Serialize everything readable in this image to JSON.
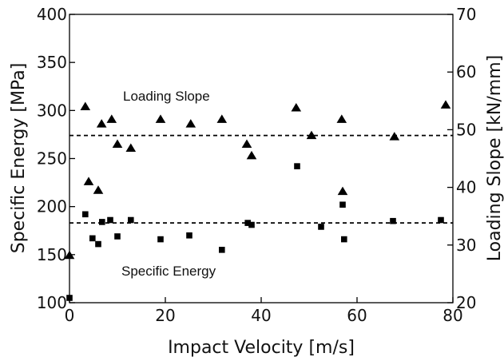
{
  "chart_data": {
    "type": "scatter",
    "xlabel": "Impact Velocity [m/s]",
    "ylabel": "Specific Energy [MPa]",
    "y2label": "Loading Slope [kN/mm]",
    "xlim": [
      0,
      80
    ],
    "ylim": [
      100,
      400
    ],
    "y2lim": [
      20,
      70
    ],
    "xticks": [
      "0",
      "20",
      "40",
      "60",
      "80"
    ],
    "yticks": [
      "100",
      "150",
      "200",
      "250",
      "300",
      "350",
      "400"
    ],
    "y2ticks": [
      "20",
      "30",
      "40",
      "50",
      "60",
      "70"
    ],
    "grid": false,
    "annotations": {
      "loading_slope": "Loading Slope",
      "specific_energy": "Specific Energy"
    },
    "series": [
      {
        "marker": "square",
        "axis": "left",
        "mean_line": 183,
        "x": [
          0,
          3.3,
          4.8,
          6.0,
          6.8,
          8.5,
          10.0,
          12.8,
          19.0,
          25.0,
          31.8,
          37.2,
          38.0,
          47.5,
          52.5,
          57.0,
          57.3,
          67.5,
          77.5
        ],
        "y": [
          105,
          192,
          167,
          161,
          184,
          186,
          169,
          186,
          166,
          170,
          155,
          183,
          181,
          242,
          179,
          202,
          166,
          185,
          186
        ]
      },
      {
        "marker": "triangle",
        "axis": "right",
        "mean_line": 49,
        "x": [
          0,
          3.3,
          4.0,
          6.0,
          6.7,
          8.8,
          10.0,
          12.8,
          19.0,
          25.3,
          31.8,
          37.0,
          38.0,
          47.3,
          50.5,
          56.8,
          57.0,
          67.8,
          78.5
        ],
        "y": [
          28.2,
          54.0,
          41.0,
          39.5,
          51.0,
          51.8,
          47.5,
          46.8,
          51.8,
          51.0,
          51.8,
          47.5,
          45.5,
          53.8,
          49.0,
          51.8,
          39.3,
          48.8,
          54.3
        ]
      }
    ]
  }
}
